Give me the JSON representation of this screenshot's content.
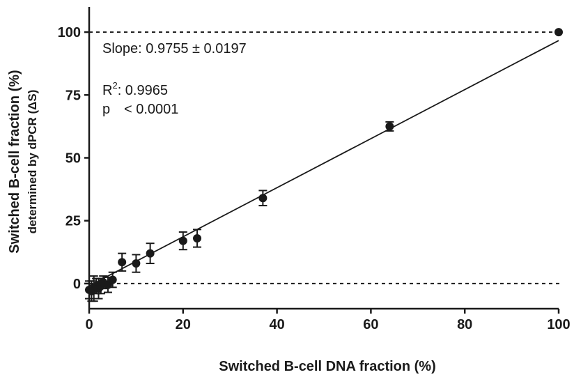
{
  "chart_data": {
    "type": "scatter",
    "xlabel": "Switched B-cell DNA fraction (%)",
    "ylabel": "Switched B-cell fraction (%)",
    "ylabel_sub": "determined by dPCR (ΔS)",
    "xlim": [
      0,
      100
    ],
    "ylim": [
      -10,
      110
    ],
    "x_ticks": [
      0,
      20,
      40,
      60,
      80,
      100
    ],
    "y_ticks": [
      0,
      25,
      50,
      75,
      100
    ],
    "grid": false,
    "reference_lines_y": [
      0,
      100
    ],
    "annotations": {
      "slope": "Slope: 0.9755 ± 0.0197",
      "r2_label": "R",
      "r2_sup": "2",
      "r2_value": ": 0.9965",
      "p_label": "p",
      "p_value": "< 0.0001"
    },
    "series": [
      {
        "fit": {
          "slope": 0.9755,
          "intercept": -0.9,
          "x_range": [
            0,
            100
          ]
        },
        "points": [
          {
            "x": 0.0,
            "y": -2.5,
            "err": 3.5
          },
          {
            "x": 0.5,
            "y": -3.0,
            "err": 4.0
          },
          {
            "x": 1.0,
            "y": -2.0,
            "err": 5.0
          },
          {
            "x": 1.5,
            "y": -1.0,
            "err": 3.0
          },
          {
            "x": 2.0,
            "y": -2.0,
            "err": 4.0
          },
          {
            "x": 2.5,
            "y": -1.0,
            "err": 3.0
          },
          {
            "x": 3.0,
            "y": 0.5,
            "err": 2.5
          },
          {
            "x": 4.0,
            "y": -0.5,
            "err": 3.0
          },
          {
            "x": 5.0,
            "y": 1.5,
            "err": 3.0
          },
          {
            "x": 7.0,
            "y": 8.5,
            "err": 3.5
          },
          {
            "x": 10.0,
            "y": 8.0,
            "err": 3.5
          },
          {
            "x": 13.0,
            "y": 12.0,
            "err": 4.0
          },
          {
            "x": 20.0,
            "y": 17.0,
            "err": 3.5
          },
          {
            "x": 23.0,
            "y": 18.0,
            "err": 3.5
          },
          {
            "x": 37.0,
            "y": 34.0,
            "err": 3.0
          },
          {
            "x": 64.0,
            "y": 62.5,
            "err": 1.8
          },
          {
            "x": 100.0,
            "y": 100.0,
            "err": 0
          }
        ]
      }
    ]
  }
}
